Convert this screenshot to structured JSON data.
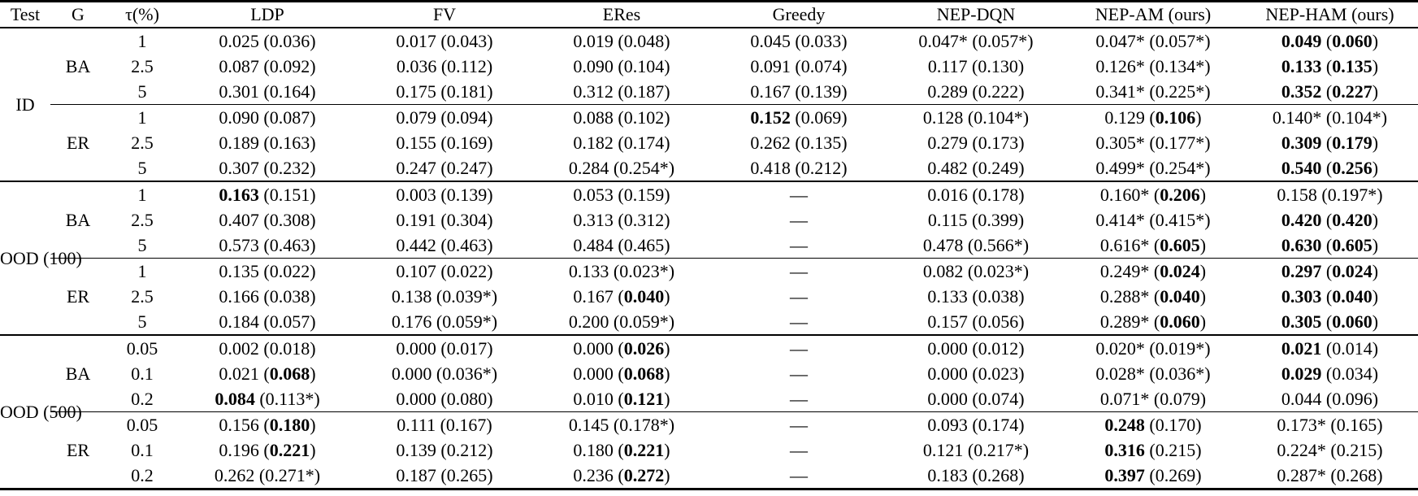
{
  "page": {
    "background": "#ffffff",
    "text_color": "#000000"
  },
  "table": {
    "columns": [
      "Test",
      "G",
      "τ(%)",
      "LDP",
      "FV",
      "ERes",
      "Greedy",
      "NEP-DQN",
      "NEP-AM (ours)",
      "NEP-HAM (ours)"
    ],
    "dash": "—",
    "groups": [
      {
        "test": "ID",
        "subgroups": [
          {
            "g": "BA",
            "rows": [
              {
                "tau": "1",
                "cells": [
                  "0.025 (0.036)",
                  "0.017 (0.043)",
                  "0.019 (0.048)",
                  "0.045 (0.033)",
                  "0.047* (0.057*)",
                  "0.047* (0.057*)",
                  "**0.049** (**0.060**)"
                ]
              },
              {
                "tau": "2.5",
                "cells": [
                  "0.087 (0.092)",
                  "0.036 (0.112)",
                  "0.090 (0.104)",
                  "0.091 (0.074)",
                  "0.117 (0.130)",
                  "0.126* (0.134*)",
                  "**0.133** (**0.135**)"
                ]
              },
              {
                "tau": "5",
                "cells": [
                  "0.301 (0.164)",
                  "0.175 (0.181)",
                  "0.312 (0.187)",
                  "0.167 (0.139)",
                  "0.289 (0.222)",
                  "0.341* (0.225*)",
                  "**0.352** (**0.227**)"
                ]
              }
            ]
          },
          {
            "g": "ER",
            "rows": [
              {
                "tau": "1",
                "cells": [
                  "0.090 (0.087)",
                  "0.079 (0.094)",
                  "0.088 (0.102)",
                  "**0.152** (0.069)",
                  "0.128 (0.104*)",
                  "0.129 (**0.106**)",
                  "0.140* (0.104*)"
                ]
              },
              {
                "tau": "2.5",
                "cells": [
                  "0.189 (0.163)",
                  "0.155 (0.169)",
                  "0.182 (0.174)",
                  "0.262 (0.135)",
                  "0.279 (0.173)",
                  "0.305* (0.177*)",
                  "**0.309** (**0.179**)"
                ]
              },
              {
                "tau": "5",
                "cells": [
                  "0.307 (0.232)",
                  "0.247 (0.247)",
                  "0.284 (0.254*)",
                  "0.418 (0.212)",
                  "0.482 (0.249)",
                  "0.499* (0.254*)",
                  "**0.540** (**0.256**)"
                ]
              }
            ]
          }
        ]
      },
      {
        "test": "OOD\n(100)",
        "subgroups": [
          {
            "g": "BA",
            "rows": [
              {
                "tau": "1",
                "cells": [
                  "**0.163** (0.151)",
                  "0.003 (0.139)",
                  "0.053 (0.159)",
                  "—",
                  "0.016 (0.178)",
                  "0.160* (**0.206**)",
                  "0.158 (0.197*)"
                ]
              },
              {
                "tau": "2.5",
                "cells": [
                  "0.407 (0.308)",
                  "0.191 (0.304)",
                  "0.313 (0.312)",
                  "—",
                  "0.115 (0.399)",
                  "0.414* (0.415*)",
                  "**0.420** (**0.420**)"
                ]
              },
              {
                "tau": "5",
                "cells": [
                  "0.573 (0.463)",
                  "0.442 (0.463)",
                  "0.484 (0.465)",
                  "—",
                  "0.478 (0.566*)",
                  "0.616* (**0.605**)",
                  "**0.630** (**0.605**)"
                ]
              }
            ]
          },
          {
            "g": "ER",
            "rows": [
              {
                "tau": "1",
                "cells": [
                  "0.135 (0.022)",
                  "0.107 (0.022)",
                  "0.133 (0.023*)",
                  "—",
                  "0.082 (0.023*)",
                  "0.249* (**0.024**)",
                  "**0.297** (**0.024**)"
                ]
              },
              {
                "tau": "2.5",
                "cells": [
                  "0.166 (0.038)",
                  "0.138 (0.039*)",
                  "0.167 (**0.040**)",
                  "—",
                  "0.133 (0.038)",
                  "0.288* (**0.040**)",
                  "**0.303** (**0.040**)"
                ]
              },
              {
                "tau": "5",
                "cells": [
                  "0.184 (0.057)",
                  "0.176 (0.059*)",
                  "0.200 (0.059*)",
                  "—",
                  "0.157 (0.056)",
                  "0.289* (**0.060**)",
                  "**0.305** (**0.060**)"
                ]
              }
            ]
          }
        ]
      },
      {
        "test": "OOD\n(500)",
        "subgroups": [
          {
            "g": "BA",
            "rows": [
              {
                "tau": "0.05",
                "cells": [
                  "0.002 (0.018)",
                  "0.000 (0.017)",
                  "0.000 (**0.026**)",
                  "—",
                  "0.000 (0.012)",
                  "0.020* (0.019*)",
                  "**0.021** (0.014)"
                ]
              },
              {
                "tau": "0.1",
                "cells": [
                  "0.021 (**0.068**)",
                  "0.000 (0.036*)",
                  "0.000 (**0.068**)",
                  "—",
                  "0.000 (0.023)",
                  "0.028* (0.036*)",
                  "**0.029** (0.034)"
                ]
              },
              {
                "tau": "0.2",
                "cells": [
                  "**0.084** (0.113*)",
                  "0.000 (0.080)",
                  "0.010 (**0.121**)",
                  "—",
                  "0.000 (0.074)",
                  "0.071* (0.079)",
                  "0.044 (0.096)"
                ]
              }
            ]
          },
          {
            "g": "ER",
            "rows": [
              {
                "tau": "0.05",
                "cells": [
                  "0.156 (**0.180**)",
                  "0.111 (0.167)",
                  "0.145 (0.178*)",
                  "—",
                  "0.093 (0.174)",
                  "**0.248** (0.170)",
                  "0.173* (0.165)"
                ]
              },
              {
                "tau": "0.1",
                "cells": [
                  "0.196 (**0.221**)",
                  "0.139 (0.212)",
                  "0.180 (**0.221**)",
                  "—",
                  "0.121 (0.217*)",
                  "**0.316** (0.215)",
                  "0.224* (0.215)"
                ]
              },
              {
                "tau": "0.2",
                "cells": [
                  "0.262 (0.271*)",
                  "0.187 (0.265)",
                  "0.236 (**0.272**)",
                  "—",
                  "0.183 (0.268)",
                  "**0.397** (0.269)",
                  "0.287* (0.268)"
                ]
              }
            ]
          }
        ]
      }
    ]
  }
}
